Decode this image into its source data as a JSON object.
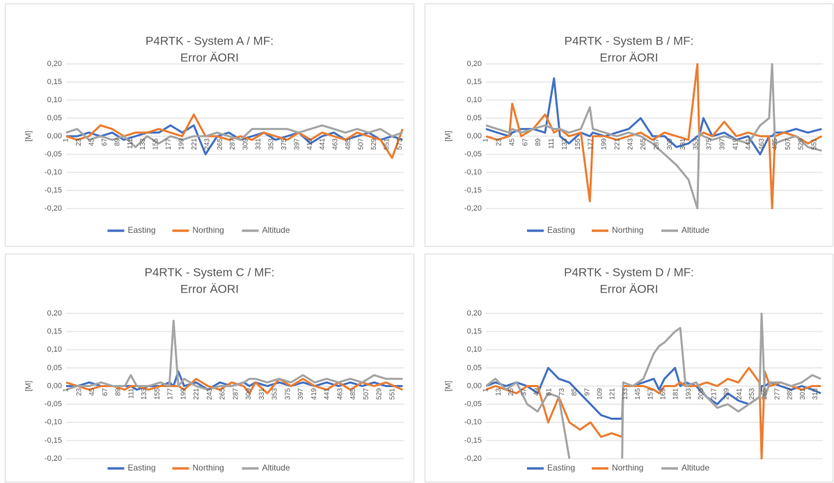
{
  "chart_data": [
    {
      "type": "line",
      "title": "P4RTK - System A / MF:",
      "subtitle": "Error ÄORI",
      "y_label": "[M]",
      "x": [
        1,
        20,
        40,
        60,
        80,
        100,
        120,
        140,
        160,
        180,
        200,
        220,
        240,
        260,
        280,
        300,
        320,
        340,
        360,
        380,
        400,
        420,
        440,
        460,
        480,
        500,
        520,
        540,
        560,
        578
      ],
      "xlim": [
        1,
        580
      ],
      "xticks": [
        1,
        23,
        45,
        67,
        89,
        111,
        133,
        155,
        177,
        199,
        221,
        243,
        265,
        287,
        309,
        331,
        353,
        375,
        397,
        419,
        441,
        463,
        485,
        507,
        529,
        551,
        573
      ],
      "ylim": [
        -0.2,
        0.2
      ],
      "yticks": [
        {
          "value": 0.2,
          "label": "0,20"
        },
        {
          "value": 0.15,
          "label": "0,15"
        },
        {
          "value": 0.1,
          "label": "0,10"
        },
        {
          "value": 0.05,
          "label": "0,05"
        },
        {
          "value": 0,
          "label": "0,00"
        },
        {
          "value": -0.05,
          "label": "-0,05"
        },
        {
          "value": -0.1,
          "label": "-0,10"
        },
        {
          "value": -0.15,
          "label": "-0,15"
        },
        {
          "value": -0.2,
          "label": "-0,20"
        }
      ],
      "grid": true,
      "legend": "bottom",
      "series": [
        {
          "name": "Easting",
          "color": "#4472c4",
          "values": [
            0.0,
            0.0,
            0.01,
            0.0,
            0.01,
            -0.01,
            0.0,
            0.01,
            0.01,
            0.03,
            0.01,
            0.03,
            -0.05,
            0.0,
            0.01,
            -0.01,
            0.0,
            0.01,
            -0.01,
            0.0,
            0.01,
            -0.02,
            0.0,
            0.01,
            -0.01,
            0.0,
            0.01,
            -0.01,
            0.0,
            -0.01
          ]
        },
        {
          "name": "Northing",
          "color": "#ed7d31",
          "values": [
            0.0,
            -0.01,
            0.0,
            0.03,
            0.02,
            0.0,
            0.01,
            0.01,
            0.02,
            0.01,
            0.0,
            0.06,
            0.0,
            0.0,
            -0.01,
            0.0,
            -0.01,
            0.01,
            0.0,
            -0.01,
            0.01,
            -0.01,
            0.01,
            0.0,
            -0.01,
            0.01,
            0.0,
            -0.01,
            -0.06,
            0.02
          ]
        },
        {
          "name": "Altitude",
          "color": "#a5a5a5",
          "values": [
            0.01,
            0.02,
            -0.01,
            0.0,
            -0.01,
            0.0,
            -0.03,
            0.0,
            -0.02,
            0.0,
            -0.01,
            0.0,
            0.0,
            0.01,
            0.0,
            -0.01,
            0.02,
            0.02,
            0.02,
            0.02,
            0.01,
            0.02,
            0.03,
            0.02,
            0.01,
            0.02,
            0.01,
            0.02,
            0.0,
            0.01
          ]
        }
      ]
    },
    {
      "type": "line",
      "title": "P4RTK - System B / MF:",
      "subtitle": "Error ÄORI",
      "y_label": "[M]",
      "x": [
        1,
        20,
        40,
        45,
        60,
        80,
        100,
        115,
        125,
        140,
        160,
        175,
        180,
        200,
        220,
        240,
        260,
        280,
        300,
        320,
        340,
        355,
        358,
        365,
        380,
        400,
        420,
        440,
        460,
        475,
        480,
        485,
        500,
        520,
        540,
        563
      ],
      "xlim": [
        1,
        565
      ],
      "xticks": [
        1,
        23,
        45,
        67,
        89,
        111,
        133,
        155,
        177,
        199,
        221,
        243,
        265,
        287,
        309,
        331,
        353,
        375,
        397,
        419,
        441,
        463,
        485,
        507,
        529,
        551
      ],
      "ylim": [
        -0.2,
        0.2
      ],
      "yticks": [
        {
          "value": 0.2,
          "label": "0,20"
        },
        {
          "value": 0.15,
          "label": "0,15"
        },
        {
          "value": 0.1,
          "label": "0,10"
        },
        {
          "value": 0.05,
          "label": "0,05"
        },
        {
          "value": 0,
          "label": "0,00"
        },
        {
          "value": -0.05,
          "label": "-0,05"
        },
        {
          "value": -0.1,
          "label": "-0,10"
        },
        {
          "value": -0.15,
          "label": "-0,15"
        },
        {
          "value": -0.2,
          "label": "-0,20"
        }
      ],
      "grid": true,
      "legend": "bottom",
      "series": [
        {
          "name": "Easting",
          "color": "#4472c4",
          "values": [
            0.02,
            0.01,
            0.0,
            0.01,
            0.02,
            0.02,
            0.01,
            0.16,
            0.0,
            -0.02,
            0.01,
            0.0,
            0.01,
            0.0,
            0.01,
            0.02,
            0.05,
            0.0,
            0.0,
            -0.03,
            -0.02,
            0.0,
            0.0,
            0.05,
            0.0,
            0.01,
            -0.01,
            0.0,
            -0.05,
            0.0,
            0.0,
            0.01,
            0.01,
            0.02,
            0.01,
            0.02
          ]
        },
        {
          "name": "Northing",
          "color": "#ed7d31",
          "values": [
            0.0,
            -0.01,
            0.0,
            0.09,
            0.0,
            0.02,
            0.06,
            0.01,
            0.02,
            0.0,
            0.01,
            -0.18,
            0.0,
            0.0,
            -0.01,
            0.0,
            0.01,
            -0.01,
            0.01,
            0.0,
            -0.01,
            0.2,
            0.0,
            0.01,
            0.0,
            0.04,
            0.0,
            0.01,
            0.0,
            0.0,
            -0.2,
            0.0,
            0.01,
            0.0,
            -0.02,
            0.0
          ]
        },
        {
          "name": "Altitude",
          "color": "#a5a5a5",
          "values": [
            0.03,
            0.02,
            0.01,
            0.02,
            0.01,
            0.02,
            0.03,
            0.02,
            0.02,
            0.01,
            0.02,
            0.08,
            0.02,
            0.01,
            0.0,
            0.01,
            0.0,
            -0.02,
            -0.05,
            -0.08,
            -0.12,
            -0.2,
            0.01,
            0.0,
            -0.01,
            0.0,
            -0.01,
            -0.02,
            0.03,
            0.05,
            0.2,
            -0.02,
            -0.01,
            0.0,
            -0.03,
            -0.04
          ]
        }
      ]
    },
    {
      "type": "line",
      "title": "P4RTK - System C / MF:",
      "subtitle": "Error ÄORI",
      "y_label": "[M]",
      "x": [
        1,
        20,
        40,
        60,
        80,
        100,
        110,
        120,
        140,
        160,
        175,
        182,
        190,
        200,
        220,
        240,
        260,
        280,
        300,
        310,
        320,
        340,
        360,
        380,
        400,
        420,
        440,
        460,
        480,
        500,
        520,
        540,
        568
      ],
      "xlim": [
        1,
        570
      ],
      "xticks": [
        1,
        23,
        45,
        67,
        89,
        111,
        133,
        155,
        177,
        199,
        221,
        243,
        265,
        287,
        309,
        331,
        353,
        375,
        397,
        419,
        441,
        463,
        485,
        507,
        529,
        551
      ],
      "ylim": [
        -0.2,
        0.2
      ],
      "yticks": [
        {
          "value": 0.2,
          "label": "0,20"
        },
        {
          "value": 0.15,
          "label": "0,15"
        },
        {
          "value": 0.1,
          "label": "0,10"
        },
        {
          "value": 0.05,
          "label": "0,05"
        },
        {
          "value": 0,
          "label": "0,00"
        },
        {
          "value": -0.05,
          "label": "-0,05"
        },
        {
          "value": -0.1,
          "label": "-0,10"
        },
        {
          "value": -0.15,
          "label": "-0,15"
        },
        {
          "value": -0.2,
          "label": "-0,20"
        }
      ],
      "grid": true,
      "legend": "bottom",
      "series": [
        {
          "name": "Easting",
          "color": "#4472c4",
          "values": [
            0.0,
            0.0,
            0.01,
            0.0,
            0.0,
            0.0,
            0.0,
            -0.01,
            0.0,
            0.0,
            0.01,
            0.0,
            0.04,
            0.0,
            0.01,
            -0.01,
            0.01,
            0.0,
            0.01,
            0.0,
            0.01,
            0.0,
            0.01,
            0.0,
            0.01,
            0.0,
            0.01,
            0.0,
            0.01,
            0.0,
            0.01,
            0.0,
            0.0
          ]
        },
        {
          "name": "Northing",
          "color": "#ed7d31",
          "values": [
            0.01,
            0.0,
            -0.01,
            0.0,
            0.0,
            -0.01,
            0.0,
            0.0,
            -0.01,
            0.0,
            0.0,
            0.0,
            0.0,
            -0.01,
            0.02,
            0.0,
            -0.01,
            0.01,
            0.0,
            -0.02,
            0.01,
            -0.02,
            0.02,
            0.0,
            0.02,
            0.0,
            -0.01,
            0.01,
            -0.01,
            0.01,
            0.0,
            0.01,
            -0.01
          ]
        },
        {
          "name": "Altitude",
          "color": "#a5a5a5",
          "values": [
            -0.01,
            0.0,
            0.0,
            0.01,
            0.0,
            0.0,
            0.03,
            0.0,
            0.0,
            0.01,
            0.0,
            0.18,
            0.0,
            0.02,
            0.0,
            -0.01,
            0.0,
            0.0,
            0.01,
            0.02,
            0.02,
            0.01,
            0.02,
            0.01,
            0.03,
            0.01,
            0.02,
            0.01,
            0.02,
            0.01,
            0.03,
            0.02,
            0.02
          ]
        }
      ]
    },
    {
      "type": "line",
      "title": "P4RTK - System D / MF:",
      "subtitle": "Error ÄORI",
      "y_label": "[M]",
      "x": [
        1,
        10,
        20,
        30,
        40,
        50,
        60,
        70,
        80,
        90,
        100,
        110,
        120,
        130,
        131,
        140,
        150,
        160,
        165,
        170,
        180,
        185,
        190,
        200,
        210,
        220,
        230,
        240,
        250,
        260,
        262,
        265,
        270,
        280,
        290,
        300,
        310,
        318
      ],
      "xlim": [
        1,
        320
      ],
      "xticks": [
        1,
        13,
        25,
        37,
        49,
        61,
        73,
        85,
        97,
        109,
        121,
        133,
        145,
        157,
        169,
        181,
        193,
        205,
        217,
        229,
        241,
        253,
        265,
        277,
        289,
        301,
        313
      ],
      "ylim": [
        -0.2,
        0.2
      ],
      "yticks": [
        {
          "value": 0.2,
          "label": "0,20"
        },
        {
          "value": 0.15,
          "label": "0,15"
        },
        {
          "value": 0.1,
          "label": "0,10"
        },
        {
          "value": 0.05,
          "label": "0,05"
        },
        {
          "value": 0,
          "label": "0,00"
        },
        {
          "value": -0.05,
          "label": "-0,05"
        },
        {
          "value": -0.1,
          "label": "-0,10"
        },
        {
          "value": -0.15,
          "label": "-0,15"
        },
        {
          "value": -0.2,
          "label": "-0,20"
        }
      ],
      "grid": true,
      "legend": "bottom",
      "series": [
        {
          "name": "Easting",
          "color": "#4472c4",
          "values": [
            0.0,
            0.01,
            0.0,
            0.01,
            0.0,
            -0.02,
            0.05,
            0.02,
            0.01,
            -0.02,
            -0.05,
            -0.08,
            -0.09,
            -0.09,
            0.0,
            0.0,
            0.01,
            0.02,
            -0.01,
            0.02,
            0.05,
            0.0,
            0.01,
            0.0,
            -0.03,
            -0.05,
            -0.02,
            -0.04,
            -0.05,
            -0.03,
            0.0,
            0.0,
            0.01,
            0.0,
            -0.01,
            0.0,
            -0.01,
            -0.02
          ]
        },
        {
          "name": "Northing",
          "color": "#ed7d31",
          "values": [
            -0.01,
            0.0,
            -0.01,
            -0.02,
            0.0,
            0.0,
            -0.1,
            -0.03,
            -0.1,
            -0.12,
            -0.1,
            -0.14,
            -0.13,
            -0.14,
            0.0,
            0.0,
            0.0,
            -0.01,
            -0.02,
            0.0,
            0.0,
            0.01,
            0.0,
            0.0,
            0.01,
            0.0,
            0.02,
            0.01,
            0.05,
            0.01,
            -0.2,
            0.04,
            0.0,
            0.01,
            0.0,
            -0.01,
            0.0,
            0.0
          ]
        },
        {
          "name": "Altitude",
          "color": "#a5a5a5",
          "values": [
            0.0,
            0.02,
            -0.01,
            0.01,
            -0.05,
            -0.07,
            -0.02,
            -0.03,
            -0.2,
            null,
            null,
            null,
            null,
            -0.2,
            0.01,
            0.0,
            0.02,
            0.09,
            0.11,
            0.12,
            0.15,
            0.16,
            0.0,
            0.01,
            -0.03,
            -0.06,
            -0.05,
            -0.07,
            -0.05,
            -0.03,
            0.2,
            -0.03,
            0.01,
            0.01,
            0.0,
            0.01,
            0.03,
            0.02
          ]
        }
      ]
    }
  ]
}
